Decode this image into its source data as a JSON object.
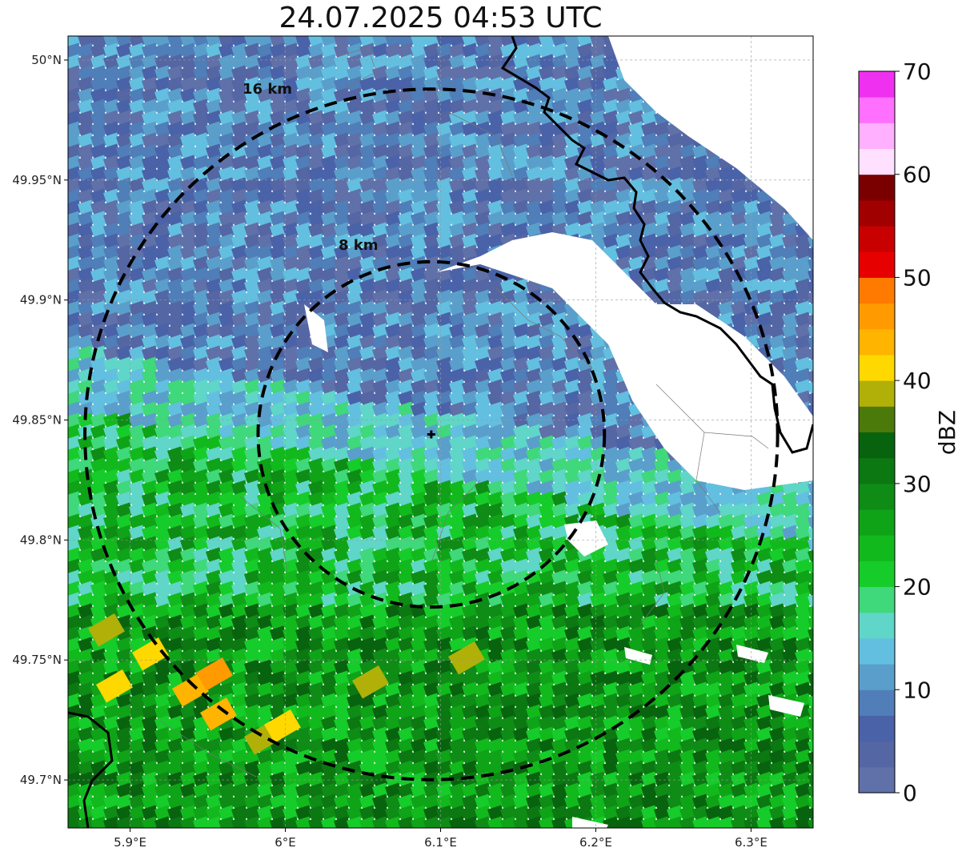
{
  "title": "24.07.2025 04:53 UTC",
  "map": {
    "lon_range": [
      5.86,
      6.34
    ],
    "lat_range": [
      49.68,
      50.01
    ],
    "x_ticks": [
      {
        "value": 5.9,
        "label": "5.9°E"
      },
      {
        "value": 6.0,
        "label": "6°E"
      },
      {
        "value": 6.1,
        "label": "6.1°E"
      },
      {
        "value": 6.2,
        "label": "6.2°E"
      },
      {
        "value": 6.3,
        "label": "6.3°E"
      }
    ],
    "y_ticks": [
      {
        "value": 50.0,
        "label": "50°N"
      },
      {
        "value": 49.95,
        "label": "49.95°N"
      },
      {
        "value": 49.9,
        "label": "49.9°N"
      },
      {
        "value": 49.85,
        "label": "49.85°N"
      },
      {
        "value": 49.8,
        "label": "49.8°N"
      },
      {
        "value": 49.75,
        "label": "49.75°N"
      },
      {
        "value": 49.7,
        "label": "49.7°N"
      }
    ],
    "radar_site": {
      "lon": 6.094,
      "lat": 49.844
    },
    "rings": [
      {
        "radius_km": 8,
        "label": "8 km"
      },
      {
        "radius_km": 16,
        "label": "16 km"
      }
    ],
    "gridlines": true
  },
  "colorbar": {
    "label": "dBZ",
    "min": 0,
    "max": 70,
    "ticks": [
      0,
      10,
      20,
      30,
      40,
      50,
      60,
      70
    ],
    "colors": [
      "#6070a8",
      "#5466a3",
      "#4a62a8",
      "#4f7eb8",
      "#5a9fcb",
      "#63bfe0",
      "#5fd6c8",
      "#3fd87a",
      "#16cc2a",
      "#12b91d",
      "#0fa318",
      "#0e8c16",
      "#0b7812",
      "#08630e",
      "#4b7a0a",
      "#b0b008",
      "#ffd800",
      "#ffb400",
      "#ff9a00",
      "#ff7a00",
      "#e60000",
      "#c80000",
      "#a00000",
      "#7a0000",
      "#ffe0ff",
      "#ffb0ff",
      "#ff70ff",
      "#f030f0"
    ]
  }
}
